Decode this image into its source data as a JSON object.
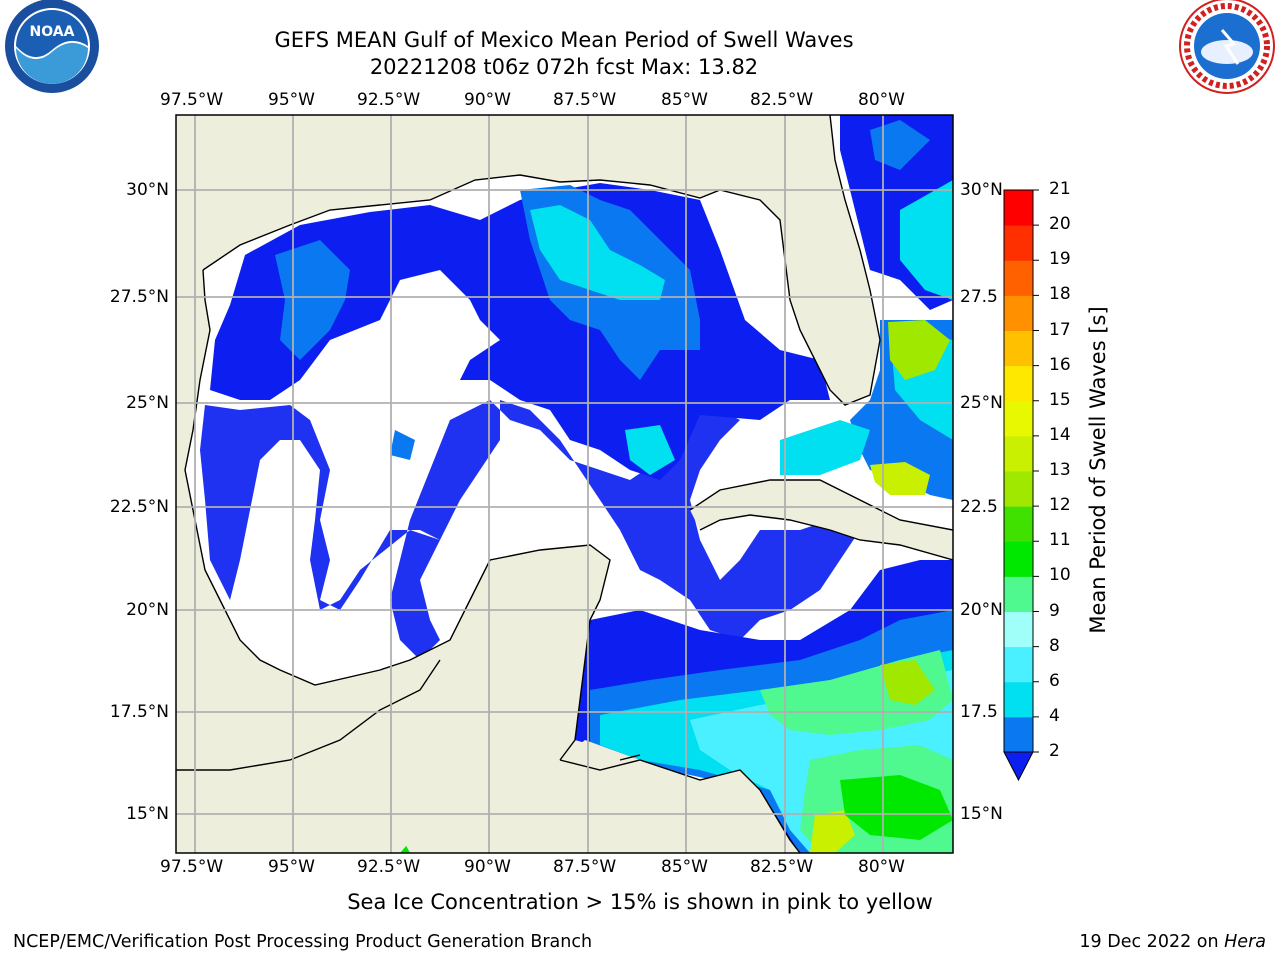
{
  "header": {
    "title_line1": "GEFS MEAN Gulf of Mexico Mean Period of Swell Waves",
    "title_line2": "20221208 t06z 072h fcst   Max: 13.82"
  },
  "logos": {
    "left": "noaa-logo",
    "right": "nws-logo"
  },
  "map": {
    "lon_labels": [
      "97.5°W",
      "95°W",
      "92.5°W",
      "90°W",
      "87.5°W",
      "85°W",
      "82.5°W",
      "80°W"
    ],
    "lat_labels": [
      "30°N",
      "27.5°N",
      "25°N",
      "22.5°N",
      "20°N",
      "17.5°N",
      "15°N"
    ],
    "lat_labels_right": [
      "30°N",
      "27.5",
      "25°N",
      "22.5",
      "20°N",
      "17.5",
      "15°N"
    ],
    "colors": {
      "land": "#eeeedc",
      "open_water": "#ffffff",
      "grid": "#b0b0b0"
    }
  },
  "colorbar": {
    "label": "Mean Period of Swell Waves [s]",
    "ticks": [
      "2",
      "4",
      "6",
      "8",
      "9",
      "10",
      "11",
      "12",
      "13",
      "14",
      "15",
      "16",
      "17",
      "18",
      "19",
      "20",
      "21"
    ],
    "colors": [
      "#0c1ff0",
      "#0a78f0",
      "#00e0f0",
      "#4af0ff",
      "#a0fff8",
      "#50f890",
      "#00e800",
      "#40e000",
      "#a0e800",
      "#c8f000",
      "#e8f800",
      "#ffe800",
      "#ffc000",
      "#ff9000",
      "#ff6000",
      "#ff3000",
      "#ff0000"
    ]
  },
  "caption": "Sea Ice Concentration > 15% is shown in pink to yellow",
  "footer": {
    "left": "NCEP/EMC/Verification Post Processing Product Generation Branch",
    "right_prefix": "19 Dec 2022 on ",
    "right_host": "Hera"
  }
}
